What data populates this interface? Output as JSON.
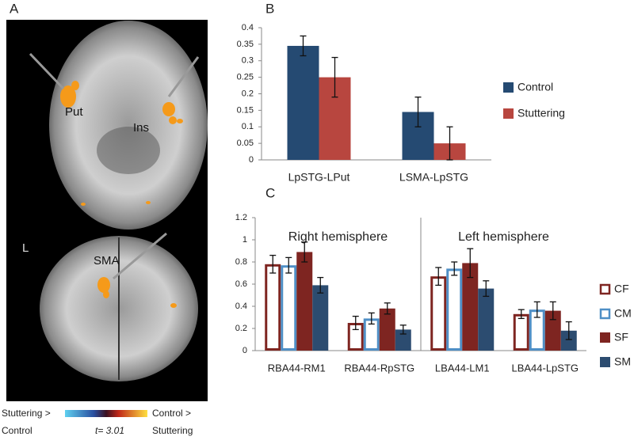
{
  "panel_a": {
    "panel": "A",
    "labels": {
      "put": "Put",
      "ins": "Ins",
      "l": "L",
      "sma": "SMA"
    },
    "colorbar": {
      "left": [
        "Stuttering >",
        "Control"
      ],
      "center": "t= 3.01",
      "right": [
        "Control >",
        "Stuttering"
      ]
    }
  },
  "chart_data": [
    {
      "type": "bar",
      "panel": "B",
      "categories": [
        "LpSTG-LPut",
        "LSMA-LpSTG"
      ],
      "series": [
        {
          "name": "Control",
          "color": "#254a72",
          "fill": "#254a72",
          "values": [
            0.345,
            0.145
          ],
          "errors": [
            0.03,
            0.045
          ]
        },
        {
          "name": "Stuttering",
          "color": "#b8463f",
          "fill": "#b8463f",
          "values": [
            0.25,
            0.05
          ],
          "errors": [
            0.06,
            0.05
          ]
        }
      ],
      "ylim": [
        0,
        0.4
      ],
      "yticks": [
        0,
        0.05,
        0.1,
        0.15,
        0.2,
        0.25,
        0.3,
        0.35,
        0.4
      ],
      "grid": false,
      "legend": "right"
    },
    {
      "type": "bar",
      "panel": "C",
      "categories": [
        "RBA44-RM1",
        "RBA44-RpSTG",
        "LBA44-LM1",
        "LBA44-LpSTG"
      ],
      "annotations": [
        "Right hemisphere",
        "Left hemisphere"
      ],
      "series": [
        {
          "name": "CF",
          "color": "#7e2521",
          "fill": "#ffffff",
          "values": [
            0.78,
            0.25,
            0.67,
            0.33
          ],
          "errors": [
            0.08,
            0.06,
            0.08,
            0.04
          ]
        },
        {
          "name": "CM",
          "color": "#4f8fc6",
          "fill": "#ffffff",
          "values": [
            0.77,
            0.29,
            0.74,
            0.37
          ],
          "errors": [
            0.07,
            0.05,
            0.06,
            0.07
          ]
        },
        {
          "name": "SF",
          "color": "#7e2521",
          "fill": "#7e2521",
          "values": [
            0.89,
            0.38,
            0.79,
            0.36
          ],
          "errors": [
            0.09,
            0.05,
            0.13,
            0.08
          ]
        },
        {
          "name": "SM",
          "color": "#2c4c70",
          "fill": "#2c4c70",
          "values": [
            0.59,
            0.19,
            0.56,
            0.18
          ],
          "errors": [
            0.07,
            0.04,
            0.07,
            0.08
          ]
        }
      ],
      "ylim": [
        0,
        1.2
      ],
      "yticks": [
        0,
        0.2,
        0.4,
        0.6,
        0.8,
        1,
        1.2
      ],
      "grid": false,
      "legend": "right"
    }
  ]
}
